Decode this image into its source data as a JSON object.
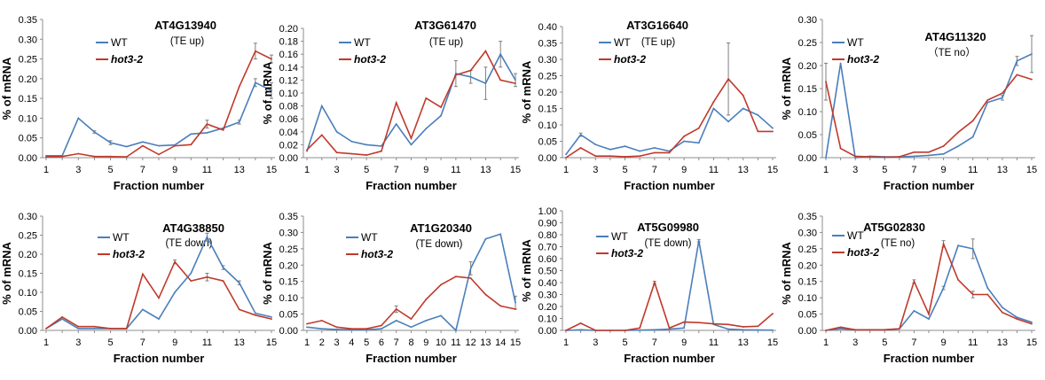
{
  "colors": {
    "WT": "#4a7ebb",
    "hot3-2": "#c0392b",
    "err": "#7f7f7f"
  },
  "chart_data": [
    {
      "type": "line",
      "title": "AT4G13940",
      "subtitle": "(TE up)",
      "xlabel": "Fraction number",
      "ylabel": "% of mRNA",
      "ylim": [
        0,
        0.35
      ],
      "ytick_step": 0.05,
      "decimals": 2,
      "xticks": [
        "1",
        "3",
        "5",
        "7",
        "9",
        "11",
        "13",
        "15"
      ],
      "legend": [
        "WT",
        "hot3-2"
      ],
      "legend_pos": "top-left",
      "x": [
        1,
        2,
        3,
        4,
        5,
        6,
        7,
        8,
        9,
        10,
        11,
        12,
        13,
        14,
        15
      ],
      "series": [
        {
          "name": "WT",
          "values": [
            0.005,
            0.005,
            0.1,
            0.065,
            0.038,
            0.028,
            0.04,
            0.03,
            0.032,
            0.06,
            0.063,
            0.075,
            0.09,
            0.19,
            0.17
          ],
          "errors": [
            0,
            0,
            0,
            0.003,
            0.005,
            0,
            0,
            0,
            0,
            0,
            0,
            0,
            0.005,
            0.01,
            0.02
          ]
        },
        {
          "name": "hot3-2",
          "values": [
            0.002,
            0.003,
            0.01,
            0.003,
            0.003,
            0.002,
            0.03,
            0.008,
            0.03,
            0.033,
            0.085,
            0.07,
            0.18,
            0.27,
            0.25
          ],
          "errors": [
            0,
            0,
            0,
            0,
            0,
            0,
            0,
            0,
            0,
            0,
            0.01,
            0,
            0,
            0.02,
            0.01
          ]
        }
      ]
    },
    {
      "type": "line",
      "title": "AT3G61470",
      "subtitle": "(TE up)",
      "xlabel": "Fraction number",
      "ylabel": "% of mRNA",
      "ylim": [
        0,
        0.2
      ],
      "ytick_step": 0.02,
      "decimals": 2,
      "xticks": [
        "1",
        "3",
        "5",
        "7",
        "9",
        "11",
        "13",
        "15"
      ],
      "legend": [
        "WT",
        "hot3-2"
      ],
      "legend_pos": "top-left",
      "x": [
        1,
        2,
        3,
        4,
        5,
        6,
        7,
        8,
        9,
        10,
        11,
        12,
        13,
        14,
        15
      ],
      "series": [
        {
          "name": "WT",
          "values": [
            0.01,
            0.08,
            0.04,
            0.025,
            0.02,
            0.018,
            0.052,
            0.02,
            0.045,
            0.065,
            0.13,
            0.125,
            0.115,
            0.16,
            0.12
          ],
          "errors": [
            0,
            0,
            0,
            0,
            0,
            0,
            0,
            0,
            0,
            0,
            0.02,
            0.01,
            0.025,
            0.02,
            0.01
          ]
        },
        {
          "name": "hot3-2",
          "values": [
            0.012,
            0.035,
            0.008,
            0.006,
            0.004,
            0.01,
            0.085,
            0.03,
            0.092,
            0.078,
            0.128,
            0.135,
            0.165,
            0.12,
            0.115
          ],
          "errors": [
            0,
            0,
            0,
            0,
            0,
            0,
            0,
            0,
            0,
            0,
            0,
            0,
            0,
            0,
            0
          ]
        }
      ]
    },
    {
      "type": "line",
      "title": "AT3G16640",
      "subtitle": "(TE up)",
      "xlabel": "Fraction number",
      "ylabel": "% of mRNA",
      "ylim": [
        0,
        0.4
      ],
      "ytick_step": 0.05,
      "decimals": 2,
      "xticks": [
        "1",
        "3",
        "5",
        "7",
        "9",
        "11",
        "13",
        "15"
      ],
      "legend": [
        "WT",
        "hot3-2"
      ],
      "legend_pos": "top-left",
      "x": [
        1,
        2,
        3,
        4,
        5,
        6,
        7,
        8,
        9,
        10,
        11,
        12,
        13,
        14,
        15
      ],
      "series": [
        {
          "name": "WT",
          "values": [
            0.01,
            0.07,
            0.04,
            0.025,
            0.035,
            0.02,
            0.03,
            0.02,
            0.05,
            0.045,
            0.15,
            0.11,
            0.15,
            0.13,
            0.09
          ],
          "errors": [
            0,
            0.005,
            0,
            0,
            0,
            0,
            0,
            0,
            0,
            0,
            0,
            0,
            0,
            0,
            0
          ]
        },
        {
          "name": "hot3-2",
          "values": [
            0.0,
            0.03,
            0.005,
            0.005,
            0.003,
            0.005,
            0.015,
            0.015,
            0.065,
            0.09,
            0.17,
            0.24,
            0.19,
            0.08,
            0.08
          ],
          "errors": [
            0,
            0,
            0,
            0,
            0,
            0,
            0,
            0,
            0,
            0,
            0,
            0.11,
            0,
            0,
            0
          ]
        }
      ]
    },
    {
      "type": "line",
      "title": "AT4G11320",
      "subtitle": "（TE no）",
      "xlabel": "Fraction number",
      "ylabel": "% of mRNA",
      "ylim": [
        0,
        0.3
      ],
      "ytick_step": 0.05,
      "decimals": 2,
      "xticks": [
        "1",
        "3",
        "5",
        "7",
        "9",
        "11",
        "13",
        "15"
      ],
      "legend": [
        "WT",
        "hot3-2"
      ],
      "legend_pos": "top-left",
      "x": [
        1,
        2,
        3,
        4,
        5,
        6,
        7,
        8,
        9,
        10,
        11,
        12,
        13,
        14,
        15
      ],
      "series": [
        {
          "name": "WT",
          "values": [
            0.0,
            0.205,
            0.0,
            0.003,
            0.002,
            0.002,
            0.003,
            0.005,
            0.008,
            0.025,
            0.045,
            0.12,
            0.13,
            0.21,
            0.225
          ],
          "errors": [
            0,
            0,
            0,
            0,
            0,
            0,
            0,
            0,
            0,
            0,
            0,
            0,
            0.005,
            0.01,
            0.04
          ]
        },
        {
          "name": "hot3-2",
          "values": [
            0.165,
            0.02,
            0.003,
            0.002,
            0.001,
            0.002,
            0.012,
            0.012,
            0.025,
            0.055,
            0.08,
            0.125,
            0.14,
            0.18,
            0.17
          ],
          "errors": [
            0.04,
            0,
            0,
            0,
            0,
            0,
            0,
            0,
            0,
            0,
            0,
            0,
            0,
            0,
            0
          ]
        }
      ]
    },
    {
      "type": "line",
      "title": "AT4G38850",
      "subtitle": "(TE down)",
      "xlabel": "Fraction number",
      "ylabel": "% of mRNA",
      "ylim": [
        0,
        0.3
      ],
      "ytick_step": 0.05,
      "decimals": 2,
      "xticks": [
        "1",
        "3",
        "5",
        "7",
        "9",
        "11",
        "13",
        "15"
      ],
      "legend": [
        "WT",
        "hot3-2"
      ],
      "legend_pos": "top-left",
      "x": [
        1,
        2,
        3,
        4,
        5,
        6,
        7,
        8,
        9,
        10,
        11,
        12,
        13,
        14,
        15
      ],
      "series": [
        {
          "name": "WT",
          "values": [
            0.005,
            0.03,
            0.005,
            0.005,
            0.005,
            0.005,
            0.055,
            0.03,
            0.1,
            0.15,
            0.245,
            0.165,
            0.125,
            0.045,
            0.035
          ],
          "errors": [
            0,
            0,
            0,
            0,
            0,
            0,
            0,
            0,
            0,
            0,
            0.01,
            0.005,
            0.005,
            0,
            0
          ]
        },
        {
          "name": "hot3-2",
          "values": [
            0.005,
            0.035,
            0.01,
            0.01,
            0.005,
            0.005,
            0.148,
            0.085,
            0.18,
            0.13,
            0.14,
            0.13,
            0.055,
            0.04,
            0.03
          ],
          "errors": [
            0,
            0,
            0,
            0,
            0,
            0,
            0,
            0,
            0.005,
            0,
            0.01,
            0,
            0,
            0,
            0
          ]
        }
      ]
    },
    {
      "type": "line",
      "title": "AT1G20340",
      "subtitle": "(TE down)",
      "xlabel": "Fraction number",
      "ylabel": "% of mRNA",
      "ylim": [
        0,
        0.35
      ],
      "ytick_step": 0.05,
      "decimals": 2,
      "xticks": [
        "1",
        "2",
        "3",
        "4",
        "5",
        "6",
        "7",
        "8",
        "9",
        "10",
        "11",
        "12",
        "13",
        "14",
        "15"
      ],
      "legend": [
        "WT",
        "hot3-2"
      ],
      "legend_pos": "top-right",
      "x": [
        1,
        2,
        3,
        4,
        5,
        6,
        7,
        8,
        9,
        10,
        11,
        12,
        13,
        14,
        15
      ],
      "series": [
        {
          "name": "WT",
          "values": [
            0.01,
            0.005,
            0.003,
            0.002,
            0.002,
            0.005,
            0.03,
            0.01,
            0.03,
            0.045,
            0.0,
            0.19,
            0.28,
            0.295,
            0.085
          ],
          "errors": [
            0,
            0,
            0,
            0,
            0,
            0,
            0,
            0,
            0,
            0,
            0,
            0.02,
            0,
            0,
            0.02
          ]
        },
        {
          "name": "hot3-2",
          "values": [
            0.02,
            0.03,
            0.01,
            0.005,
            0.005,
            0.015,
            0.065,
            0.035,
            0.095,
            0.14,
            0.165,
            0.16,
            0.11,
            0.075,
            0.065
          ],
          "errors": [
            0,
            0,
            0,
            0,
            0,
            0,
            0.01,
            0,
            0,
            0,
            0,
            0,
            0,
            0,
            0
          ]
        }
      ]
    },
    {
      "type": "line",
      "title": "AT5G09980",
      "subtitle": "(TE down)",
      "xlabel": "Fraction number",
      "ylabel": "% of mRNA",
      "ylim": [
        0,
        1.0
      ],
      "ytick_step": 0.1,
      "decimals": 2,
      "xticks": [
        "1",
        "3",
        "5",
        "7",
        "9",
        "11",
        "13",
        "15"
      ],
      "legend": [
        "WT",
        "hot3-2"
      ],
      "legend_pos": "top-left",
      "x": [
        1,
        2,
        3,
        4,
        5,
        6,
        7,
        8,
        9,
        10,
        11,
        12,
        13,
        14,
        15
      ],
      "series": [
        {
          "name": "WT",
          "values": [
            0.0,
            0.005,
            0.0,
            0.0,
            0.0,
            0.002,
            0.005,
            0.01,
            0.02,
            0.75,
            0.05,
            0.01,
            0.005,
            0.003,
            0.002
          ],
          "errors": [
            0,
            0,
            0,
            0,
            0,
            0,
            0,
            0,
            0,
            0.01,
            0,
            0,
            0,
            0,
            0
          ]
        },
        {
          "name": "hot3-2",
          "values": [
            0.0,
            0.06,
            0.0,
            0.0,
            0.0,
            0.02,
            0.4,
            0.02,
            0.07,
            0.065,
            0.055,
            0.05,
            0.03,
            0.035,
            0.14
          ],
          "errors": [
            0,
            0,
            0,
            0,
            0,
            0,
            0.01,
            0,
            0,
            0,
            0,
            0,
            0,
            0,
            0
          ]
        }
      ]
    },
    {
      "type": "line",
      "title": "AT5G02830",
      "subtitle": "(TE no)",
      "xlabel": "Fraction number",
      "ylabel": "% of mRNA",
      "ylim": [
        0,
        0.35
      ],
      "ytick_step": 0.05,
      "decimals": 2,
      "xticks": [
        "1",
        "3",
        "5",
        "7",
        "9",
        "11",
        "13",
        "15"
      ],
      "legend": [
        "WT",
        "hot3-2"
      ],
      "legend_pos": "top-left",
      "x": [
        1,
        2,
        3,
        4,
        5,
        6,
        7,
        8,
        9,
        10,
        11,
        12,
        13,
        14,
        15
      ],
      "series": [
        {
          "name": "WT",
          "values": [
            0.0,
            0.005,
            0.002,
            0.002,
            0.002,
            0.005,
            0.06,
            0.035,
            0.13,
            0.26,
            0.25,
            0.13,
            0.07,
            0.04,
            0.025
          ],
          "errors": [
            0,
            0,
            0,
            0,
            0,
            0,
            0,
            0,
            0.005,
            0,
            0.03,
            0,
            0,
            0,
            0
          ]
        },
        {
          "name": "hot3-2",
          "values": [
            0.0,
            0.01,
            0.002,
            0.002,
            0.002,
            0.005,
            0.15,
            0.05,
            0.265,
            0.155,
            0.11,
            0.11,
            0.055,
            0.035,
            0.02
          ],
          "errors": [
            0,
            0,
            0,
            0,
            0,
            0,
            0.005,
            0,
            0.01,
            0,
            0.01,
            0,
            0,
            0,
            0
          ]
        }
      ]
    }
  ]
}
